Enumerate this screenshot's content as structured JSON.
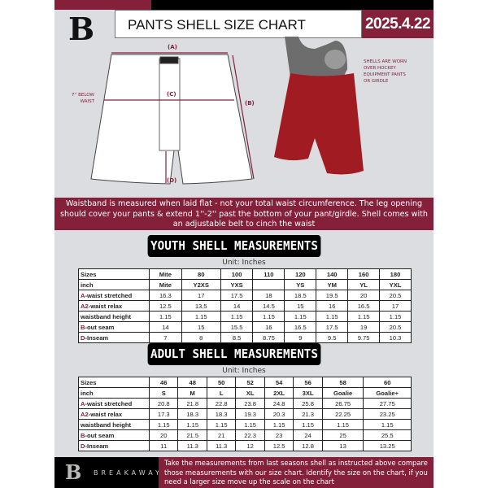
{
  "header": {
    "title": "PANTS SHELL SIZE CHART",
    "date": "2025.4.22",
    "logo_letter": "B"
  },
  "colors": {
    "accent": "#85203b",
    "sheet": "#dcdde0",
    "shell_red": "#a11c22"
  },
  "diagram": {
    "label_a": "(A)",
    "label_b": "(B)",
    "label_c": "(C)",
    "label_d": "(D)",
    "below_waist": [
      "7'' BELOW",
      "WAIST"
    ],
    "note": [
      "SHELLS ARE WORN",
      "OVER HOCKEY",
      "EQUIPMENT PANTS",
      "OR GIRDLE"
    ]
  },
  "instructions": "Waistband is measured when laid flat - not your total waist circumference. The leg opening should cover your pants & extend 1''-2'' past the bottom of your pant/girdle. Shell comes with an adjustable belt to cinch the waist",
  "youth": {
    "title": "YOUTH SHELL MEASUREMENTS",
    "unit": "Unit: Inches",
    "rows": [
      {
        "prefix": "",
        "label": "Sizes",
        "values": [
          "Mite",
          "80",
          "100",
          "110",
          "120",
          "140",
          "160",
          "180"
        ]
      },
      {
        "prefix": "",
        "label": "inch",
        "values": [
          "Mite",
          "Y2XS",
          "YXS",
          "",
          "YS",
          "YM",
          "YL",
          "YXL"
        ]
      },
      {
        "prefix": "A",
        "label": "-waist stretched",
        "values": [
          "16.3",
          "17",
          "17.5",
          "18",
          "18.5",
          "19.5",
          "20",
          "20.5"
        ]
      },
      {
        "prefix": "A2",
        "label": "-waist relax",
        "values": [
          "12.5",
          "13.5",
          "14",
          "14.5",
          "15",
          "16",
          "16.5",
          "17"
        ]
      },
      {
        "prefix": "",
        "label": "waistband height",
        "values": [
          "1.15",
          "1.15",
          "1.15",
          "1.15",
          "1.15",
          "1.15",
          "1.15",
          "1.15"
        ]
      },
      {
        "prefix": "B",
        "label": "-out seam",
        "values": [
          "14",
          "15",
          "15.5",
          "16",
          "16.5",
          "17.5",
          "19",
          "20.5"
        ]
      },
      {
        "prefix": "D",
        "label": "-Inseam",
        "values": [
          "7",
          "8",
          "8.5",
          "8.75",
          "9",
          "9.5",
          "9.75",
          "10.3"
        ]
      }
    ]
  },
  "adult": {
    "title": "ADULT SHELL MEASUREMENTS",
    "unit": "Unit: Inches",
    "rows": [
      {
        "prefix": "",
        "label": "Sizes",
        "values": [
          "46",
          "48",
          "50",
          "52",
          "54",
          "56",
          "58",
          "60"
        ]
      },
      {
        "prefix": "",
        "label": "inch",
        "values": [
          "S",
          "M",
          "L",
          "XL",
          "2XL",
          "3XL",
          "Goalie",
          "Goalie+"
        ]
      },
      {
        "prefix": "A",
        "label": "-waist stretched",
        "values": [
          "20.8",
          "21.8",
          "22.8",
          "23.8",
          "24.8",
          "25.8",
          "26.75",
          "27.75"
        ]
      },
      {
        "prefix": "A2",
        "label": "-waist relax",
        "values": [
          "17.3",
          "18.3",
          "18.3",
          "19.3",
          "20.3",
          "21.3",
          "22.25",
          "23.25"
        ]
      },
      {
        "prefix": "",
        "label": "waistband height",
        "values": [
          "1.15",
          "1.15",
          "1.15",
          "1.15",
          "1.15",
          "1.15",
          "1.15",
          "1.15"
        ]
      },
      {
        "prefix": "B",
        "label": "-out seam",
        "values": [
          "20",
          "21.5",
          "21",
          "22.3",
          "23",
          "24",
          "25",
          "25.5"
        ]
      },
      {
        "prefix": "D",
        "label": "-Inseam",
        "values": [
          "11",
          "11.3",
          "11.3",
          "12",
          "12.5",
          "12.8",
          "13",
          "13.25"
        ]
      }
    ]
  },
  "footer": {
    "brand": "BREAKAWAY",
    "text": "Take the measurements from last seasons shell as instructed above compare those measurements  with our size chart. Identify the size on the chart, if you need a larger size move up the scale on the chart"
  }
}
